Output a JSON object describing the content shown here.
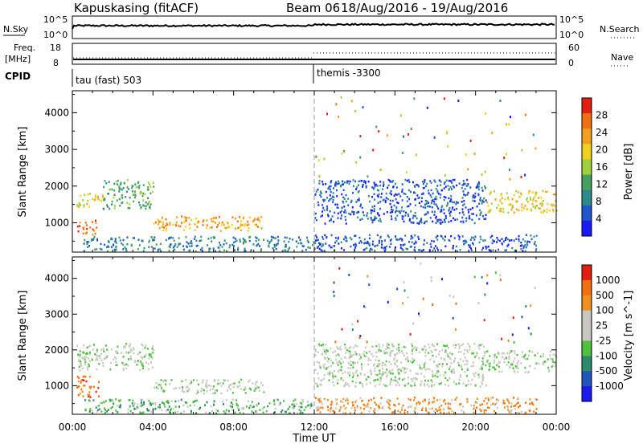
{
  "header": {
    "station": "Kapuskasing (fitACF)",
    "beam": "Beam 06",
    "dates": "18/Aug/2016 - 19/Aug/2016"
  },
  "top_panels": {
    "nsky_label": "N.Sky",
    "nsky_ticks": [
      "10^5",
      "10^0"
    ],
    "nsearch_label": "N.Search",
    "freq_label_line1": "Freq.",
    "freq_label_line2": "[MHz]",
    "freq_ticks": [
      "18",
      "8"
    ],
    "nave_ticks": [
      "60",
      "0"
    ],
    "nave_label": "Nave",
    "cpid_label": "CPID",
    "cpid_modes": [
      "tau (fast) 503",
      "themis -3300"
    ],
    "freq_values_mhz": [
      10.0,
      10.0
    ],
    "nave_values": [
      23,
      36
    ]
  },
  "colors": {
    "power_scale": [
      "#1a1aff",
      "#2255cc",
      "#2e8a8a",
      "#46a060",
      "#a0d040",
      "#f0d020",
      "#f0a020",
      "#f07010",
      "#e02010"
    ],
    "velocity_scale": [
      "#1a1aee",
      "#2255bb",
      "#2e8a6a",
      "#50c040",
      "#c8c8c0",
      "#c8c8c0",
      "#f09020",
      "#f07010",
      "#e02010"
    ]
  },
  "chart_data": [
    {
      "type": "heatmap",
      "name": "Power",
      "xlabel": "",
      "ylabel": "Slant Range [km]",
      "x_ticks": [
        "00:00",
        "04:00",
        "08:00",
        "12:00",
        "16:00",
        "20:00",
        "00:00"
      ],
      "y_ticks": [
        1000,
        2000,
        3000,
        4000
      ],
      "ylim": [
        200,
        4600
      ],
      "colorbar_label": "Power [dB]",
      "colorbar_ticks": [
        4,
        8,
        12,
        16,
        20,
        24,
        28
      ],
      "regions": [
        {
          "t0": 0.2,
          "t1": 1.5,
          "r0": 1450,
          "r1": 1850,
          "level": 5
        },
        {
          "t0": 0.2,
          "t1": 1.2,
          "r0": 700,
          "r1": 1100,
          "level": 7
        },
        {
          "t0": 1.5,
          "t1": 4.0,
          "r0": 1400,
          "r1": 2200,
          "level": 3
        },
        {
          "t0": 4.0,
          "t1": 9.5,
          "r0": 800,
          "r1": 1200,
          "level": 6
        },
        {
          "t0": 0.5,
          "t1": 12.0,
          "r0": 250,
          "r1": 650,
          "level": 2
        },
        {
          "t0": 12.0,
          "t1": 20.5,
          "r0": 1000,
          "r1": 2200,
          "level": 1
        },
        {
          "t0": 20.5,
          "t1": 24.0,
          "r0": 1300,
          "r1": 1900,
          "level": 5
        },
        {
          "t0": 12.0,
          "t1": 23.0,
          "r0": 250,
          "r1": 700,
          "level": 1
        }
      ]
    },
    {
      "type": "heatmap",
      "name": "Velocity",
      "xlabel": "Time UT",
      "ylabel": "Slant Range [km]",
      "x_ticks": [
        "00:00",
        "04:00",
        "08:00",
        "12:00",
        "16:00",
        "20:00",
        "00:00"
      ],
      "y_ticks": [
        1000,
        2000,
        3000,
        4000
      ],
      "ylim": [
        200,
        4600
      ],
      "colorbar_label": "Velocity [m s^-1]",
      "colorbar_ticks": [
        "1000",
        "500",
        "100",
        "25",
        "-25",
        "-100",
        "-500",
        "-1000"
      ],
      "regions": [
        {
          "t0": 0.2,
          "t1": 4.0,
          "r0": 1450,
          "r1": 2200,
          "level": 4
        },
        {
          "t0": 0.2,
          "t1": 1.3,
          "r0": 700,
          "r1": 1300,
          "level": 7
        },
        {
          "t0": 4.0,
          "t1": 9.5,
          "r0": 800,
          "r1": 1200,
          "level": 4
        },
        {
          "t0": 0.5,
          "t1": 12.0,
          "r0": 250,
          "r1": 650,
          "level": 3
        },
        {
          "t0": 12.0,
          "t1": 20.5,
          "r0": 1000,
          "r1": 2200,
          "level": 4
        },
        {
          "t0": 20.5,
          "t1": 24.0,
          "r0": 1400,
          "r1": 2000,
          "level": 4
        },
        {
          "t0": 12.0,
          "t1": 23.0,
          "r0": 250,
          "r1": 700,
          "level": 6
        }
      ]
    }
  ]
}
